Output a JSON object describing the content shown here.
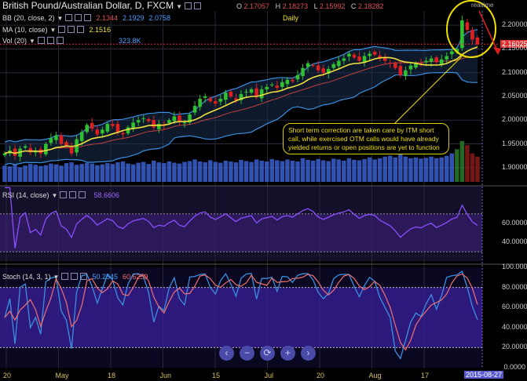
{
  "header": {
    "title": "British Pound/Australian Dollar, D, FXCM",
    "open_label": "O",
    "open": "2.17057",
    "high_label": "H",
    "high": "2.18273",
    "low_label": "L",
    "low": "2.15992",
    "close_label": "C",
    "close": "2.18282",
    "interval": "Daily",
    "realtime": "realtime"
  },
  "indicators": {
    "bb": {
      "label": "BB (20, close, 2)",
      "v1": "2.1344",
      "v2": "2.1929",
      "v3": "2.0758"
    },
    "ma": {
      "label": "MA (10, close)",
      "v1": "2.1516"
    },
    "vol": {
      "label": "Vol (20)",
      "v1": "323.8K"
    },
    "rsi": {
      "label": "RSI (14, close)",
      "v1": "58.6606"
    },
    "stoch": {
      "label": "Stoch (14, 3, 1)",
      "v1": "50.2545",
      "v2": "60.6259"
    }
  },
  "annotation": "Short term correction are taken care by ITM short call, while exercised OTM calls would have already yielded returns or open positions are yet to function",
  "price_tag": "2.16025",
  "date_tag": "2015-08-27",
  "nav_buttons": [
    "‹",
    "−",
    "⟳",
    "+",
    "›"
  ],
  "colors": {
    "up": "#30c030",
    "down": "#e02020",
    "bb": "#3a8fe0",
    "ma": "#f0e040",
    "rsi": "#8a4fff",
    "stoch_k": "#3a8fe0",
    "stoch_d": "#f07070",
    "highlight": "#f0e000"
  },
  "chart_data": [
    {
      "type": "candlestick",
      "title": "British Pound/Australian Dollar, D, FXCM",
      "ylim": [
        1.87,
        2.23
      ],
      "y_ticks": [
        "2.20000",
        "2.15000",
        "2.10000",
        "2.05000",
        "2.00000",
        "1.95000",
        "1.90000"
      ],
      "y_tick_values": [
        2.2,
        2.15,
        2.1,
        2.05,
        2.0,
        1.95,
        1.9
      ],
      "x_ticks": [
        "20",
        "May",
        "18",
        "Jun",
        "15",
        "Jul",
        "20",
        "Aug",
        "17"
      ],
      "close": [
        1.93,
        1.936,
        1.925,
        1.94,
        1.945,
        1.932,
        1.935,
        1.93,
        1.95,
        1.962,
        1.968,
        1.95,
        1.945,
        1.93,
        1.96,
        1.975,
        1.99,
        1.982,
        1.97,
        1.98,
        1.992,
        1.988,
        1.975,
        1.97,
        1.985,
        1.995,
        2.0,
        2.004,
        1.998,
        1.985,
        1.992,
        1.99,
        2.0,
        2.008,
        1.998,
        1.995,
        2.012,
        2.03,
        2.045,
        2.05,
        2.04,
        2.035,
        2.045,
        2.058,
        2.05,
        2.042,
        2.055,
        2.06,
        2.065,
        2.05,
        2.065,
        2.07,
        2.075,
        2.068,
        2.08,
        2.085,
        2.082,
        2.095,
        2.11,
        2.12,
        2.115,
        2.105,
        2.1,
        2.108,
        2.118,
        2.125,
        2.13,
        2.14,
        2.132,
        2.125,
        2.135,
        2.14,
        2.138,
        2.13,
        2.125,
        2.12,
        2.11,
        2.095,
        2.105,
        2.115,
        2.12,
        2.118,
        2.125,
        2.13,
        2.122,
        2.128,
        2.135,
        2.145,
        2.15,
        2.21,
        2.19,
        2.17,
        2.16
      ],
      "volume": [
        0.4,
        0.38,
        0.42,
        0.36,
        0.4,
        0.44,
        0.42,
        0.39,
        0.41,
        0.45,
        0.43,
        0.4,
        0.46,
        0.48,
        0.42,
        0.44,
        0.47,
        0.45,
        0.41,
        0.43,
        0.46,
        0.44,
        0.48,
        0.5,
        0.45,
        0.43,
        0.47,
        0.49,
        0.44,
        0.52,
        0.48,
        0.46,
        0.5,
        0.47,
        0.45,
        0.49,
        0.51,
        0.55,
        0.5,
        0.48,
        0.53,
        0.49,
        0.47,
        0.52,
        0.5,
        0.48,
        0.54,
        0.51,
        0.49,
        0.55,
        0.52,
        0.5,
        0.56,
        0.53,
        0.51,
        0.55,
        0.52,
        0.5,
        0.58,
        0.54,
        0.52,
        0.56,
        0.53,
        0.51,
        0.57,
        0.55,
        0.52,
        0.58,
        0.54,
        0.53,
        0.56,
        0.6,
        0.55,
        0.58,
        0.62,
        0.64,
        0.6,
        0.7,
        0.62,
        0.58,
        0.6,
        0.57,
        0.59,
        0.62,
        0.58,
        0.6,
        0.64,
        0.7,
        0.8,
        1.0,
        0.9,
        0.7,
        0.62
      ],
      "bb_period": 20,
      "ma_period": 10
    },
    {
      "type": "line",
      "title": "RSI (14, close)",
      "ylim": [
        20,
        100
      ],
      "y_ticks": [
        "60.0000",
        "40.0000"
      ],
      "y_tick_values": [
        60,
        40
      ],
      "bands": [
        30,
        70
      ]
    },
    {
      "type": "line",
      "title": "Stoch (14, 3, 1)",
      "ylim": [
        0,
        100
      ],
      "y_ticks": [
        "100.0000",
        "80.0000",
        "60.0000",
        "40.0000",
        "20.0000",
        "0.0000"
      ],
      "y_tick_values": [
        100,
        80,
        60,
        40,
        20,
        0
      ],
      "bands": [
        20,
        80
      ]
    }
  ]
}
